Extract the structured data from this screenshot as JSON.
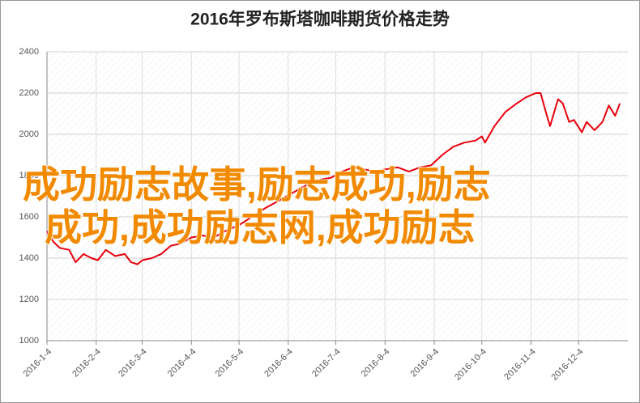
{
  "chart_data": {
    "type": "line",
    "title": "2016年罗布斯塔咖啡期货价格走势",
    "annotations": [
      "成功励志故事,励志成功,励志",
      "成功,成功励志网,成功励志"
    ],
    "x": [
      "2016-1-4",
      "2016-1-8",
      "2016-1-12",
      "2016-1-18",
      "2016-1-22",
      "2016-1-27",
      "2016-2-1",
      "2016-2-5",
      "2016-2-10",
      "2016-2-16",
      "2016-2-22",
      "2016-2-26",
      "2016-3-1",
      "2016-3-4",
      "2016-3-10",
      "2016-3-16",
      "2016-3-22",
      "2016-3-28",
      "2016-4-4",
      "2016-4-11",
      "2016-4-18",
      "2016-4-25",
      "2016-5-4",
      "2016-5-12",
      "2016-5-20",
      "2016-5-27",
      "2016-6-3",
      "2016-6-10",
      "2016-6-17",
      "2016-6-24",
      "2016-7-1",
      "2016-7-8",
      "2016-7-15",
      "2016-7-22",
      "2016-7-29",
      "2016-8-4",
      "2016-8-12",
      "2016-8-19",
      "2016-8-26",
      "2016-9-2",
      "2016-9-9",
      "2016-9-16",
      "2016-9-23",
      "2016-9-30",
      "2016-10-4",
      "2016-10-6",
      "2016-10-12",
      "2016-10-19",
      "2016-10-26",
      "2016-11-1",
      "2016-11-7",
      "2016-11-10",
      "2016-11-14",
      "2016-11-16",
      "2016-11-21",
      "2016-11-24",
      "2016-11-28",
      "2016-12-1",
      "2016-12-6",
      "2016-12-9",
      "2016-12-14",
      "2016-12-19",
      "2016-12-23",
      "2016-12-27",
      "2016-12-30"
    ],
    "series": [
      {
        "color": "#e8000b",
        "values": [
          1530,
          1480,
          1450,
          1440,
          1380,
          1420,
          1400,
          1390,
          1440,
          1410,
          1420,
          1380,
          1370,
          1390,
          1400,
          1420,
          1460,
          1470,
          1500,
          1510,
          1500,
          1530,
          1560,
          1600,
          1640,
          1670,
          1700,
          1730,
          1760,
          1780,
          1790,
          1820,
          1840,
          1830,
          1820,
          1830,
          1840,
          1820,
          1840,
          1850,
          1900,
          1940,
          1960,
          1970,
          1990,
          1960,
          2040,
          2110,
          2150,
          2180,
          2200,
          2200,
          2090,
          2040,
          2170,
          2150,
          2060,
          2070,
          2010,
          2060,
          2020,
          2060,
          2140,
          2090,
          2150
        ]
      }
    ],
    "xlim": [
      "2016-1-4",
      "2017-1-4"
    ],
    "xticks": [
      "2016-1-4",
      "2016-2-4",
      "2016-3-4",
      "2016-4-4",
      "2016-5-4",
      "2016-6-4",
      "2016-7-4",
      "2016-8-4",
      "2016-9-4",
      "2016-10-4",
      "2016-11-4",
      "2016-12-4"
    ],
    "ylim": [
      1000,
      2400
    ],
    "yticks": [
      1000,
      1200,
      1400,
      1600,
      1800,
      2000,
      2200,
      2400
    ],
    "grid": true
  }
}
